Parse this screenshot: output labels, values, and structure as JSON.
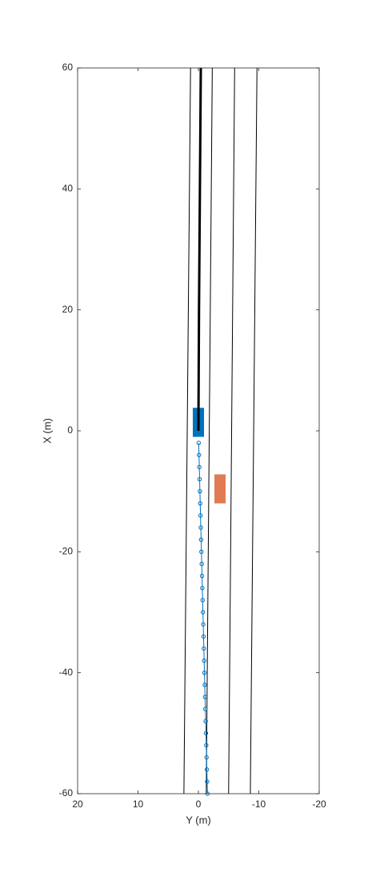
{
  "chart_data": {
    "type": "birds-eye",
    "xlabel": "Y (m)",
    "ylabel": "X (m)",
    "xlim": [
      20,
      -20
    ],
    "ylim": [
      -60,
      60
    ],
    "xticks": [
      20,
      10,
      0,
      -10,
      -20
    ],
    "yticks": [
      -60,
      -40,
      -20,
      0,
      20,
      40,
      60
    ],
    "boxes": [
      {
        "color": "#0072bd",
        "x": [
          0.93,
          -0.93
        ],
        "y": [
          -1.0,
          3.8
        ]
      },
      {
        "color": "#e07b54",
        "x": [
          -2.65,
          -4.5
        ],
        "y": [
          -12.0,
          -7.2
        ]
      }
    ],
    "series": [
      {
        "color": "#000000",
        "width": 1,
        "x": [
          1.3,
          2.4
        ],
        "values": [
          60,
          -60
        ]
      },
      {
        "color": "#000000",
        "width": 1,
        "x": [
          -2.3,
          -1.3
        ],
        "values": [
          60,
          -60
        ]
      },
      {
        "color": "#000000",
        "width": 1,
        "x": [
          -6.0,
          -5.0
        ],
        "values": [
          60,
          -60
        ]
      },
      {
        "color": "#000000",
        "width": 1,
        "x": [
          -9.7,
          -8.6
        ],
        "values": [
          60,
          -60
        ]
      },
      {
        "color": "#000000",
        "width": 3,
        "x": [
          0,
          -0.1,
          -0.25,
          -0.4
        ],
        "values": [
          0,
          20,
          40,
          60
        ]
      },
      {
        "color": "#0072bd",
        "width": 1,
        "marker": "o",
        "x": [
          -0.05,
          -0.1,
          -0.15,
          -0.2,
          -0.25,
          -0.3,
          -0.35,
          -0.4,
          -0.45,
          -0.5,
          -0.55,
          -0.6,
          -0.65,
          -0.7,
          -0.75,
          -0.8,
          -0.85,
          -0.9,
          -0.95,
          -1.0,
          -1.05,
          -1.1,
          -1.15,
          -1.2,
          -1.25,
          -1.3,
          -1.35,
          -1.4,
          -1.45,
          -1.5
        ],
        "values": [
          -2,
          -4,
          -6,
          -8,
          -10,
          -12,
          -14,
          -16,
          -18,
          -20,
          -22,
          -24,
          -26,
          -28,
          -30,
          -32,
          -34,
          -36,
          -38,
          -40,
          -42,
          -44,
          -46,
          -48,
          -50,
          -52,
          -54,
          -56,
          -58,
          -60
        ]
      }
    ]
  }
}
